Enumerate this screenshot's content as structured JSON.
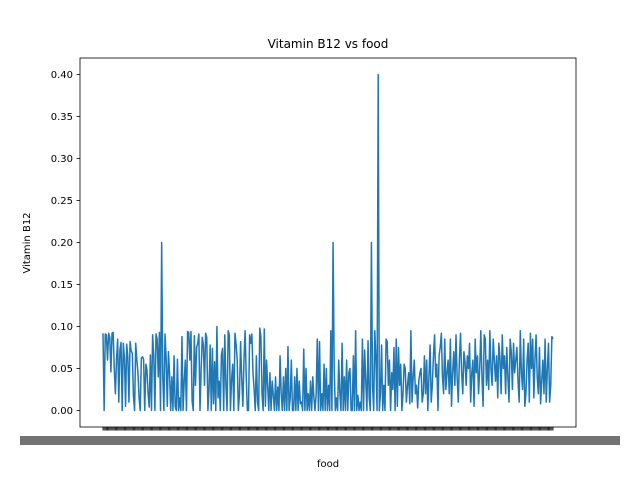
{
  "chart_data": {
    "type": "line",
    "title": "Vitamin B12 vs food",
    "xlabel": "food",
    "ylabel": "Vitamin B12",
    "ylim": [
      -0.02,
      0.42
    ],
    "yticks": [
      "0.00",
      "0.05",
      "0.10",
      "0.15",
      "0.20",
      "0.25",
      "0.30",
      "0.35",
      "0.40"
    ],
    "grid": false,
    "legend": "none",
    "line_color": "#1f77b4",
    "n_points": 400,
    "x_tick_labels_note_overlapping": true,
    "values": [
      0.092,
      0.0,
      0.091,
      0.09,
      0.06,
      0.092,
      0.087,
      0.046,
      0.092,
      0.093,
      0.05,
      0.02,
      0.061,
      0.085,
      0.01,
      0.072,
      0.081,
      0.0,
      0.08,
      0.063,
      0.005,
      0.079,
      0.064,
      0.01,
      0.082,
      0.071,
      0.068,
      0.017,
      0.0,
      0.08,
      0.06,
      0.045,
      0.015,
      0.0,
      0.062,
      0.064,
      0.061,
      0.0,
      0.055,
      0.048,
      0.02,
      0.004,
      0.066,
      0.0,
      0.09,
      0.066,
      0.0,
      0.091,
      0.085,
      0.04,
      0.093,
      0.0,
      0.2,
      0.04,
      0.0,
      0.091,
      0.062,
      0.005,
      0.07,
      0.045,
      0.0,
      0.04,
      0.0,
      0.065,
      0.005,
      0.0,
      0.061,
      0.0,
      0.015,
      0.0,
      0.088,
      0.0,
      0.035,
      0.06,
      0.0,
      0.094,
      0.093,
      0.06,
      0.094,
      0.012,
      0.0,
      0.089,
      0.03,
      0.075,
      0.08,
      0.091,
      0.0,
      0.048,
      0.087,
      0.078,
      0.03,
      0.092,
      0.087,
      0.0,
      0.025,
      0.078,
      0.0,
      0.074,
      0.008,
      0.058,
      0.0,
      0.1,
      0.015,
      0.035,
      0.0,
      0.066,
      0.074,
      0.0,
      0.09,
      0.03,
      0.0,
      0.095,
      0.09,
      0.0,
      0.037,
      0.055,
      0.0,
      0.092,
      0.079,
      0.06,
      0.0,
      0.02,
      0.082,
      0.038,
      0.005,
      0.06,
      0.095,
      0.04,
      0.0,
      0.0,
      0.09,
      0.08,
      0.091,
      0.045,
      0.025,
      0.0,
      0.065,
      0.01,
      0.0,
      0.098,
      0.088,
      0.02,
      0.0,
      0.097,
      0.005,
      0.06,
      0.03,
      0.0,
      0.045,
      0.0,
      0.035,
      0.018,
      0.0,
      0.04,
      0.0,
      0.028,
      0.0,
      0.065,
      0.02,
      0.0,
      0.04,
      0.0,
      0.05,
      0.0,
      0.076,
      0.0,
      0.015,
      0.06,
      0.0,
      0.0,
      0.04,
      0.0,
      0.05,
      0.0,
      0.035,
      0.008,
      0.01,
      0.0,
      0.073,
      0.0,
      0.05,
      0.0,
      0.02,
      0.0,
      0.035,
      0.0,
      0.04,
      0.015,
      0.0,
      0.02,
      0.085,
      0.0,
      0.082,
      0.0,
      0.02,
      0.0,
      0.055,
      0.0,
      0.05,
      0.0,
      0.03,
      0.0,
      0.095,
      0.0,
      0.2,
      0.05,
      0.0,
      0.015,
      0.0,
      0.06,
      0.02,
      0.0,
      0.08,
      0.0,
      0.04,
      0.0,
      0.06,
      0.0,
      0.045,
      0.05,
      0.0,
      0.0,
      0.065,
      0.0,
      0.095,
      0.0,
      0.018,
      0.0,
      0.01,
      0.0,
      0.085,
      0.0,
      0.072,
      0.035,
      0.0,
      0.083,
      0.015,
      0.0,
      0.2,
      0.03,
      0.0,
      0.095,
      0.06,
      0.0,
      0.4,
      0.0,
      0.02,
      0.078,
      0.0,
      0.03,
      0.0,
      0.085,
      0.082,
      0.03,
      0.06,
      0.0,
      0.045,
      0.025,
      0.075,
      0.0,
      0.085,
      0.005,
      0.075,
      0.03,
      0.055,
      0.0,
      0.02,
      0.055,
      0.05,
      0.01,
      0.03,
      0.045,
      0.008,
      0.095,
      0.01,
      0.04,
      0.06,
      0.02,
      0.03,
      0.003,
      0.035,
      0.045,
      0.05,
      0.01,
      0.02,
      0.065,
      0.02,
      0.06,
      0.0,
      0.04,
      0.078,
      0.01,
      0.03,
      0.065,
      0.09,
      0.04,
      0.055,
      0.0,
      0.065,
      0.075,
      0.092,
      0.04,
      0.02,
      0.085,
      0.025,
      0.045,
      0.06,
      0.02,
      0.085,
      0.005,
      0.045,
      0.07,
      0.03,
      0.09,
      0.04,
      0.01,
      0.06,
      0.092,
      0.045,
      0.02,
      0.07,
      0.058,
      0.03,
      0.065,
      0.05,
      0.08,
      0.01,
      0.045,
      0.06,
      0.005,
      0.085,
      0.045,
      0.065,
      0.02,
      0.05,
      0.095,
      0.04,
      0.005,
      0.09,
      0.085,
      0.03,
      0.06,
      0.025,
      0.095,
      0.05,
      0.03,
      0.085,
      0.06,
      0.035,
      0.065,
      0.015,
      0.08,
      0.062,
      0.02,
      0.09,
      0.05,
      0.065,
      0.02,
      0.075,
      0.04,
      0.01,
      0.085,
      0.07,
      0.025,
      0.08,
      0.045,
      0.06,
      0.075,
      0.035,
      0.01,
      0.095,
      0.045,
      0.025,
      0.085,
      0.005,
      0.02,
      0.06,
      0.08,
      0.01,
      0.092,
      0.05,
      0.085,
      0.015,
      0.06,
      0.09,
      0.04,
      0.02,
      0.075,
      0.008,
      0.035,
      0.06,
      0.02,
      0.085,
      0.01,
      0.05,
      0.08,
      0.01,
      0.03,
      0.088,
      0.085
    ]
  }
}
